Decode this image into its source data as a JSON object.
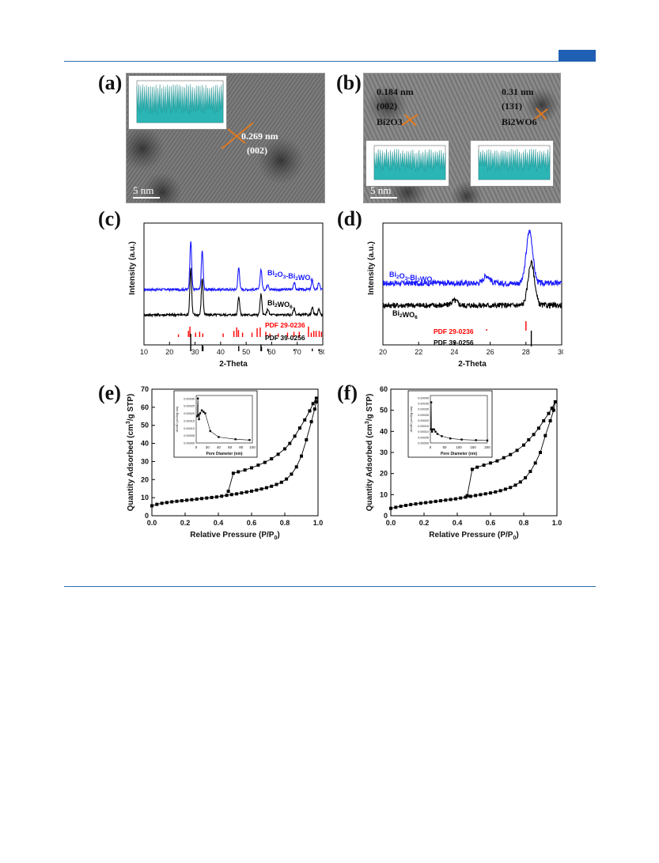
{
  "panels": {
    "a": {
      "label": "(a)",
      "d_spacing": "0.269 nm",
      "plane": "(002)",
      "scale_bar": "5 nm"
    },
    "b": {
      "label": "(b)",
      "left": {
        "d_spacing": "0.184 nm",
        "plane": "(002)",
        "phase": "Bi2O3"
      },
      "right": {
        "d_spacing": "0.31 nm",
        "plane": "(131)",
        "phase": "Bi2WO6"
      },
      "scale_bar": "5 nm"
    },
    "c": {
      "label": "(c)"
    },
    "d": {
      "label": "(d)"
    },
    "e": {
      "label": "(e)"
    },
    "f": {
      "label": "(f)"
    }
  },
  "colors": {
    "accent": "#1f5fb4",
    "blue_series": "#1a1aff",
    "black_series": "#000000",
    "red_ref": "#ff0000",
    "inset_fill": "#2bb5b5"
  },
  "chart_data": [
    {
      "id": "c",
      "type": "line",
      "xlabel": "2-Theta",
      "ylabel": "Intensity (a.u.)",
      "xlim": [
        10,
        80
      ],
      "x_ticks": [
        10,
        20,
        30,
        40,
        50,
        60,
        70,
        80
      ],
      "series": [
        {
          "name": "Bi2O3-Bi2WO6",
          "name_main": "Bi",
          "name_sub1": "2",
          "name_mid": "O",
          "name_sub2": "3",
          "name_dash": "-Bi",
          "name_sub3": "2",
          "name_mid2": "WO",
          "name_sub4": "6",
          "peaks": [
            [
              28.3,
              1.0
            ],
            [
              32.8,
              0.8
            ],
            [
              47.1,
              0.45
            ],
            [
              55.8,
              0.42
            ],
            [
              58.5,
              0.12
            ],
            [
              68.8,
              0.15
            ],
            [
              75.9,
              0.18
            ],
            [
              78.5,
              0.14
            ]
          ]
        },
        {
          "name": "Bi2WO6",
          "name_main": "Bi",
          "name_sub1": "2",
          "name_mid": "WO",
          "name_sub2": "6",
          "peaks": [
            [
              28.3,
              0.95
            ],
            [
              32.8,
              0.75
            ],
            [
              47.1,
              0.38
            ],
            [
              55.8,
              0.42
            ],
            [
              58.5,
              0.12
            ],
            [
              68.8,
              0.13
            ],
            [
              75.9,
              0.15
            ],
            [
              78.5,
              0.12
            ]
          ]
        }
      ],
      "references": [
        {
          "name": "PDF  29-0236",
          "color": "#ff0000",
          "lines": [
            [
              23.5,
              0.15
            ],
            [
              27.4,
              0.35
            ],
            [
              28.0,
              0.6
            ],
            [
              30.2,
              0.25
            ],
            [
              31.8,
              0.3
            ],
            [
              33.0,
              0.2
            ],
            [
              41.0,
              0.2
            ],
            [
              45.2,
              0.35
            ],
            [
              46.3,
              0.55
            ],
            [
              47.0,
              0.4
            ],
            [
              48.6,
              0.25
            ],
            [
              52.3,
              0.25
            ],
            [
              54.3,
              0.5
            ],
            [
              55.5,
              0.55
            ],
            [
              57.7,
              0.3
            ],
            [
              59.3,
              0.2
            ],
            [
              62.6,
              0.2
            ],
            [
              66.2,
              0.25
            ],
            [
              68.7,
              0.3
            ],
            [
              70.8,
              0.3
            ],
            [
              74.4,
              0.6
            ],
            [
              75.5,
              0.25
            ],
            [
              76.5,
              0.35
            ],
            [
              77.4,
              0.35
            ],
            [
              78.6,
              0.35
            ],
            [
              79.5,
              0.3
            ]
          ]
        },
        {
          "name": "PDF  39-0256",
          "color": "#000000",
          "lines": [
            [
              28.3,
              1.0
            ],
            [
              32.8,
              0.35
            ],
            [
              33.1,
              0.3
            ],
            [
              47.1,
              0.3
            ],
            [
              55.8,
              0.4
            ],
            [
              56.0,
              0.25
            ],
            [
              58.5,
              0.15
            ],
            [
              68.8,
              0.12
            ],
            [
              75.9,
              0.15
            ],
            [
              78.5,
              0.12
            ]
          ]
        }
      ]
    },
    {
      "id": "d",
      "type": "line",
      "xlabel": "2-Theta",
      "ylabel": "Intensity (a.u.)",
      "xlim": [
        20,
        30
      ],
      "x_ticks": [
        20,
        22,
        24,
        26,
        28,
        30
      ],
      "series": [
        {
          "name": "Bi2O3-Bi2WO6",
          "name_main": "Bi",
          "name_sub1": "2",
          "name_mid": "O",
          "name_sub2": "3",
          "name_dash": "-Bi",
          "name_sub3": "2",
          "name_mid2": "WO",
          "name_sub4": "6",
          "peaks": [
            [
              25.8,
              0.08
            ],
            [
              28.2,
              0.55
            ]
          ]
        },
        {
          "name": "Bi2WO6",
          "name_main": "Bi",
          "name_sub1": "2",
          "name_mid": "WO",
          "name_sub2": "6",
          "peaks": [
            [
              24.0,
              0.05
            ],
            [
              28.3,
              0.45
            ]
          ]
        }
      ],
      "references": [
        {
          "name": "PDF  29-0236",
          "color": "#ff0000",
          "lines": [
            [
              25.8,
              0.05
            ],
            [
              28.0,
              0.3
            ]
          ]
        },
        {
          "name": "PDF  39-0256",
          "color": "#000000",
          "lines": [
            [
              28.3,
              0.5
            ]
          ]
        }
      ]
    },
    {
      "id": "e",
      "type": "scatter",
      "xlabel": "Relative Pressure (P/P",
      "xlabel_sub": "0",
      "ylabel": "Quantity Adsorbed (cm",
      "ylabel_sup": "3",
      "ylabel_tail": "/g STP)",
      "xlim": [
        0.0,
        1.0
      ],
      "ylim": [
        0,
        70
      ],
      "x_ticks": [
        "0.0",
        "0.2",
        "0.4",
        "0.6",
        "0.8",
        "1.0"
      ],
      "y_ticks": [
        0,
        10,
        20,
        30,
        40,
        50,
        60,
        70
      ],
      "adsorption": [
        [
          0.0,
          5.5
        ],
        [
          0.03,
          6.3
        ],
        [
          0.06,
          6.9
        ],
        [
          0.09,
          7.3
        ],
        [
          0.12,
          7.7
        ],
        [
          0.15,
          8.0
        ],
        [
          0.18,
          8.3
        ],
        [
          0.21,
          8.6
        ],
        [
          0.24,
          8.9
        ],
        [
          0.27,
          9.2
        ],
        [
          0.3,
          9.5
        ],
        [
          0.33,
          9.8
        ],
        [
          0.36,
          10.1
        ],
        [
          0.39,
          10.4
        ],
        [
          0.42,
          10.8
        ],
        [
          0.45,
          11.3
        ],
        [
          0.48,
          11.7
        ],
        [
          0.51,
          12.1
        ],
        [
          0.54,
          12.6
        ],
        [
          0.57,
          13.1
        ],
        [
          0.6,
          13.6
        ],
        [
          0.63,
          14.2
        ],
        [
          0.66,
          14.8
        ],
        [
          0.69,
          15.5
        ],
        [
          0.72,
          16.3
        ],
        [
          0.75,
          17.3
        ],
        [
          0.78,
          18.5
        ],
        [
          0.81,
          20.3
        ],
        [
          0.84,
          23.0
        ],
        [
          0.87,
          27.0
        ],
        [
          0.9,
          33.0
        ],
        [
          0.93,
          42.0
        ],
        [
          0.96,
          52.0
        ],
        [
          0.98,
          59.0
        ],
        [
          0.99,
          63.0
        ]
      ],
      "desorption": [
        [
          0.99,
          65.0
        ],
        [
          0.97,
          62.0
        ],
        [
          0.95,
          58.0
        ],
        [
          0.92,
          53.0
        ],
        [
          0.89,
          48.5
        ],
        [
          0.86,
          44.0
        ],
        [
          0.83,
          40.0
        ],
        [
          0.8,
          37.0
        ],
        [
          0.76,
          34.0
        ],
        [
          0.72,
          31.5
        ],
        [
          0.68,
          29.5
        ],
        [
          0.64,
          28.0
        ],
        [
          0.6,
          26.5
        ],
        [
          0.56,
          25.3
        ],
        [
          0.52,
          24.3
        ],
        [
          0.49,
          23.5
        ],
        [
          0.46,
          13.5
        ]
      ],
      "inset": {
        "xlabel": "Pore Diameter (nm)",
        "ylabel": "dV/dD (cm3/g·nm)",
        "xlim": [
          0,
          100
        ],
        "x_ticks": [
          "0",
          "20",
          "40",
          "60",
          "80",
          "100"
        ],
        "y_ticks": [
          "0.00000",
          "0.00005",
          "0.00010",
          "0.00015",
          "0.00020",
          "0.00025",
          "0.00030"
        ],
        "ylim": [
          0,
          0.00032
        ],
        "points": [
          [
            2,
            0.00018
          ],
          [
            3,
            0.0003
          ],
          [
            4,
            0.00019
          ],
          [
            5,
            0.00016
          ],
          [
            7,
            0.0002
          ],
          [
            10,
            0.00022
          ],
          [
            13,
            0.00021
          ],
          [
            16,
            0.0002
          ],
          [
            25,
            8e-05
          ],
          [
            40,
            4e-05
          ],
          [
            70,
            2.5e-05
          ],
          [
            95,
            2e-05
          ]
        ]
      }
    },
    {
      "id": "f",
      "type": "scatter",
      "xlabel": "Relative Pressure (P/P",
      "xlabel_sub": "0",
      "ylabel": "Quantity Adsorbed (cm",
      "ylabel_sup": "3",
      "ylabel_tail": "/g STP)",
      "xlim": [
        0.0,
        1.0
      ],
      "ylim": [
        0,
        60
      ],
      "x_ticks": [
        "0.0",
        "0.2",
        "0.4",
        "0.6",
        "0.8",
        "1.0"
      ],
      "y_ticks": [
        0,
        10,
        20,
        30,
        40,
        50,
        60
      ],
      "adsorption": [
        [
          0.0,
          3.5
        ],
        [
          0.03,
          4.0
        ],
        [
          0.06,
          4.5
        ],
        [
          0.09,
          4.9
        ],
        [
          0.12,
          5.3
        ],
        [
          0.15,
          5.6
        ],
        [
          0.18,
          5.9
        ],
        [
          0.21,
          6.2
        ],
        [
          0.24,
          6.5
        ],
        [
          0.27,
          6.8
        ],
        [
          0.3,
          7.1
        ],
        [
          0.33,
          7.4
        ],
        [
          0.36,
          7.7
        ],
        [
          0.39,
          8.0
        ],
        [
          0.42,
          8.4
        ],
        [
          0.45,
          8.8
        ],
        [
          0.48,
          9.2
        ],
        [
          0.51,
          9.6
        ],
        [
          0.54,
          10.0
        ],
        [
          0.57,
          10.4
        ],
        [
          0.6,
          10.8
        ],
        [
          0.63,
          11.3
        ],
        [
          0.66,
          11.9
        ],
        [
          0.69,
          12.6
        ],
        [
          0.72,
          13.4
        ],
        [
          0.75,
          14.5
        ],
        [
          0.78,
          16.0
        ],
        [
          0.81,
          18.0
        ],
        [
          0.84,
          21.0
        ],
        [
          0.87,
          25.0
        ],
        [
          0.9,
          30.0
        ],
        [
          0.93,
          38.0
        ],
        [
          0.96,
          45.0
        ],
        [
          0.98,
          50.0
        ],
        [
          0.99,
          54.0
        ]
      ],
      "desorption": [
        [
          0.99,
          54.0
        ],
        [
          0.97,
          51.0
        ],
        [
          0.95,
          48.5
        ],
        [
          0.92,
          45.0
        ],
        [
          0.89,
          41.5
        ],
        [
          0.86,
          38.5
        ],
        [
          0.83,
          36.0
        ],
        [
          0.8,
          33.5
        ],
        [
          0.76,
          31.0
        ],
        [
          0.72,
          29.0
        ],
        [
          0.68,
          27.5
        ],
        [
          0.64,
          26.0
        ],
        [
          0.6,
          25.0
        ],
        [
          0.56,
          24.0
        ],
        [
          0.52,
          23.0
        ],
        [
          0.49,
          22.0
        ],
        [
          0.46,
          9.5
        ]
      ],
      "inset": {
        "xlabel": "Pore Diameter (nm)",
        "ylabel": "dV/dD (cm3/g·nm)",
        "xlim": [
          0,
          200
        ],
        "x_ticks": [
          "0",
          "50",
          "100",
          "150",
          "200"
        ],
        "y_ticks": [
          "0.00000",
          "0.00005",
          "0.00010",
          "0.00015",
          "0.00020",
          "0.00025",
          "0.00030",
          "0.00035",
          "0.00040"
        ],
        "ylim": [
          0,
          0.00042
        ],
        "points": [
          [
            2,
            0.00012
          ],
          [
            3,
            0.00036
          ],
          [
            4,
            0.00012
          ],
          [
            6,
            0.0001
          ],
          [
            9,
            0.00012
          ],
          [
            13,
            0.00012
          ],
          [
            18,
            0.0001
          ],
          [
            25,
            8e-05
          ],
          [
            40,
            6e-05
          ],
          [
            70,
            4e-05
          ],
          [
            110,
            3e-05
          ],
          [
            160,
            2.5e-05
          ],
          [
            200,
            2.2e-05
          ]
        ]
      }
    }
  ]
}
